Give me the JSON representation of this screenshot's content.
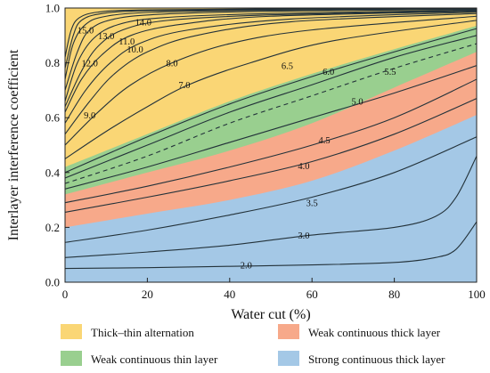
{
  "chart_data": {
    "type": "contour",
    "xlabel": "Water cut (%)",
    "ylabel": "Interlayer interference coefficient",
    "xlim": [
      0,
      100
    ],
    "ylim": [
      0,
      1
    ],
    "x_ticks": [
      "0",
      "20",
      "40",
      "60",
      "80",
      "100"
    ],
    "y_ticks": [
      "0.0",
      "0.2",
      "0.4",
      "0.6",
      "0.8",
      "1.0"
    ],
    "regions": [
      {
        "name": "Thick–thin alternation",
        "color": "#fad675"
      },
      {
        "name": "Weak continuous thin layer",
        "color": "#99cf8f"
      },
      {
        "name": "Weak continuous thick layer",
        "color": "#f7a98a"
      },
      {
        "name": "Strong continuous thick layer",
        "color": "#a4c8e6"
      }
    ],
    "region_boundaries": [
      {
        "between": [
          "Thick–thin alternation",
          "Weak continuous thin layer"
        ],
        "points": [
          [
            0,
            0.42
          ],
          [
            20,
            0.54
          ],
          [
            40,
            0.66
          ],
          [
            60,
            0.76
          ],
          [
            80,
            0.85
          ],
          [
            100,
            0.935
          ]
        ]
      },
      {
        "between": [
          "Weak continuous thin layer",
          "Weak continuous thick layer"
        ],
        "points": [
          [
            0,
            0.32
          ],
          [
            20,
            0.4
          ],
          [
            40,
            0.48
          ],
          [
            60,
            0.58
          ],
          [
            80,
            0.71
          ],
          [
            100,
            0.84
          ]
        ]
      },
      {
        "between": [
          "Weak continuous thick layer",
          "Strong continuous thick layer"
        ],
        "points": [
          [
            0,
            0.2
          ],
          [
            20,
            0.25
          ],
          [
            40,
            0.3
          ],
          [
            60,
            0.37
          ],
          [
            80,
            0.48
          ],
          [
            100,
            0.61
          ]
        ]
      }
    ],
    "contours": [
      {
        "label": "2.0",
        "label_at": [
          44,
          0.064
        ],
        "points": [
          [
            0,
            0.05
          ],
          [
            20,
            0.053
          ],
          [
            40,
            0.058
          ],
          [
            60,
            0.063
          ],
          [
            80,
            0.072
          ],
          [
            90,
            0.09
          ],
          [
            95,
            0.12
          ],
          [
            100,
            0.22
          ]
        ]
      },
      {
        "label": "3.0",
        "label_at": [
          58,
          0.172
        ],
        "points": [
          [
            0,
            0.09
          ],
          [
            20,
            0.11
          ],
          [
            40,
            0.135
          ],
          [
            60,
            0.172
          ],
          [
            80,
            0.2
          ],
          [
            90,
            0.24
          ],
          [
            95,
            0.31
          ],
          [
            100,
            0.46
          ]
        ]
      },
      {
        "label": "3.5",
        "label_at": [
          60,
          0.29
        ],
        "points": [
          [
            0,
            0.145
          ],
          [
            20,
            0.19
          ],
          [
            40,
            0.245
          ],
          [
            60,
            0.31
          ],
          [
            80,
            0.4
          ],
          [
            100,
            0.53
          ]
        ]
      },
      {
        "label": "4.0",
        "label_at": [
          58,
          0.425
        ],
        "points": [
          [
            0,
            0.255
          ],
          [
            20,
            0.31
          ],
          [
            40,
            0.37
          ],
          [
            60,
            0.44
          ],
          [
            80,
            0.54
          ],
          [
            100,
            0.67
          ]
        ]
      },
      {
        "label": "4.5",
        "label_at": [
          63,
          0.52
        ],
        "points": [
          [
            0,
            0.29
          ],
          [
            20,
            0.35
          ],
          [
            40,
            0.42
          ],
          [
            60,
            0.5
          ],
          [
            80,
            0.6
          ],
          [
            100,
            0.74
          ]
        ]
      },
      {
        "label": "5.0",
        "label_at": [
          71,
          0.66
        ],
        "points": [
          [
            0,
            0.34
          ],
          [
            20,
            0.42
          ],
          [
            40,
            0.51
          ],
          [
            60,
            0.6
          ],
          [
            80,
            0.69
          ],
          [
            100,
            0.79
          ]
        ]
      },
      {
        "label": "5.5",
        "label_at": [
          79,
          0.77
        ],
        "dashed": true,
        "points": [
          [
            0,
            0.36
          ],
          [
            20,
            0.46
          ],
          [
            40,
            0.58
          ],
          [
            60,
            0.68
          ],
          [
            80,
            0.78
          ],
          [
            100,
            0.87
          ]
        ]
      },
      {
        "label": "6.0",
        "label_at": [
          64,
          0.77
        ],
        "points": [
          [
            0,
            0.38
          ],
          [
            20,
            0.5
          ],
          [
            40,
            0.62
          ],
          [
            60,
            0.72
          ],
          [
            80,
            0.82
          ],
          [
            100,
            0.9
          ]
        ]
      },
      {
        "label": "6.5",
        "label_at": [
          54,
          0.79
        ],
        "points": [
          [
            0,
            0.4
          ],
          [
            20,
            0.53
          ],
          [
            40,
            0.65
          ],
          [
            60,
            0.75
          ],
          [
            80,
            0.84
          ],
          [
            100,
            0.925
          ]
        ]
      },
      {
        "label": "7.0",
        "label_at": [
          29,
          0.72
        ],
        "points": [
          [
            0,
            0.45
          ],
          [
            10,
            0.55
          ],
          [
            20,
            0.64
          ],
          [
            30,
            0.72
          ],
          [
            45,
            0.8
          ],
          [
            65,
            0.88
          ],
          [
            100,
            0.955
          ]
        ]
      },
      {
        "label": "8.0",
        "label_at": [
          26,
          0.8
        ],
        "points": [
          [
            0,
            0.5
          ],
          [
            8,
            0.62
          ],
          [
            16,
            0.72
          ],
          [
            26,
            0.8
          ],
          [
            40,
            0.87
          ],
          [
            60,
            0.92
          ],
          [
            100,
            0.97
          ]
        ]
      },
      {
        "label": "9.0",
        "label_at": [
          6,
          0.61
        ],
        "points": [
          [
            0,
            0.54
          ],
          [
            6,
            0.66
          ],
          [
            12,
            0.76
          ],
          [
            20,
            0.84
          ],
          [
            32,
            0.9
          ],
          [
            55,
            0.95
          ],
          [
            100,
            0.98
          ]
        ]
      },
      {
        "label": "10.0",
        "label_at": [
          17,
          0.85
        ],
        "points": [
          [
            0,
            0.58
          ],
          [
            5,
            0.7
          ],
          [
            11,
            0.8
          ],
          [
            18,
            0.87
          ],
          [
            30,
            0.92
          ],
          [
            55,
            0.96
          ],
          [
            100,
            0.985
          ]
        ]
      },
      {
        "label": "11.0",
        "label_at": [
          15,
          0.88
        ],
        "points": [
          [
            0,
            0.62
          ],
          [
            4,
            0.74
          ],
          [
            9,
            0.83
          ],
          [
            16,
            0.9
          ],
          [
            28,
            0.94
          ],
          [
            50,
            0.97
          ],
          [
            100,
            0.988
          ]
        ]
      },
      {
        "label": "12.0",
        "label_at": [
          6,
          0.8
        ],
        "points": [
          [
            0,
            0.64
          ],
          [
            4,
            0.77
          ],
          [
            8,
            0.86
          ],
          [
            14,
            0.92
          ],
          [
            25,
            0.955
          ],
          [
            50,
            0.975
          ],
          [
            100,
            0.99
          ]
        ]
      },
      {
        "label": "13.0",
        "label_at": [
          10,
          0.9
        ],
        "points": [
          [
            0,
            0.66
          ],
          [
            3,
            0.8
          ],
          [
            7,
            0.89
          ],
          [
            13,
            0.94
          ],
          [
            24,
            0.965
          ],
          [
            50,
            0.98
          ],
          [
            100,
            0.992
          ]
        ]
      },
      {
        "label": "14.0",
        "label_at": [
          19,
          0.95
        ],
        "points": [
          [
            0,
            0.7
          ],
          [
            3,
            0.84
          ],
          [
            6,
            0.92
          ],
          [
            12,
            0.96
          ],
          [
            24,
            0.978
          ],
          [
            50,
            0.988
          ],
          [
            100,
            0.995
          ]
        ]
      },
      {
        "label": "15.0",
        "label_at": [
          5,
          0.92
        ],
        "points": [
          [
            0,
            0.74
          ],
          [
            2,
            0.87
          ],
          [
            5,
            0.94
          ],
          [
            10,
            0.97
          ],
          [
            22,
            0.985
          ],
          [
            50,
            0.992
          ],
          [
            100,
            0.997
          ]
        ]
      },
      {
        "label": "",
        "points": [
          [
            0,
            0.78
          ],
          [
            2,
            0.9
          ],
          [
            4,
            0.955
          ],
          [
            9,
            0.98
          ],
          [
            20,
            0.99
          ],
          [
            50,
            0.995
          ],
          [
            100,
            0.998
          ]
        ]
      },
      {
        "label": "",
        "points": [
          [
            0,
            0.82
          ],
          [
            1.5,
            0.92
          ],
          [
            3.5,
            0.965
          ],
          [
            8,
            0.985
          ],
          [
            18,
            0.993
          ],
          [
            50,
            0.997
          ],
          [
            100,
            0.999
          ]
        ]
      }
    ],
    "legend": {
      "placement": "bottom",
      "columns": 2
    }
  }
}
